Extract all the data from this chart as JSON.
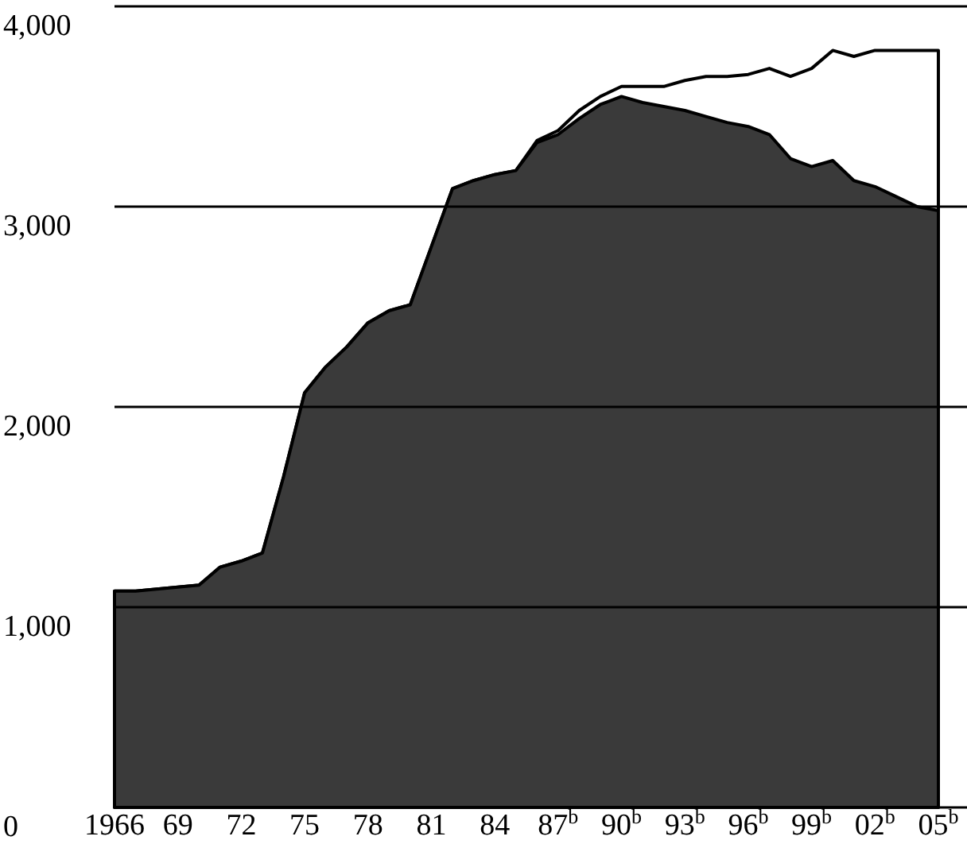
{
  "chart_data": {
    "type": "area",
    "categories": [
      "1966",
      null,
      null,
      "69",
      null,
      null,
      "72",
      null,
      null,
      "75",
      null,
      null,
      "78",
      null,
      null,
      "81",
      null,
      null,
      "84",
      null,
      null,
      "87$^{b}$",
      null,
      null,
      "90$^{b}$",
      null,
      null,
      "93$^{b}$",
      null,
      null,
      "96$^{b}$",
      null,
      null,
      "99$^{b}$",
      null,
      null,
      "02$^{b}$",
      null,
      null,
      "05$^{b}$"
    ],
    "series": [
      {
        "color": "#ffffff",
        "values": [
          1080,
          1080,
          1090,
          1100,
          1110,
          1200,
          1230,
          1270,
          1650,
          2070,
          2200,
          2300,
          2420,
          2480,
          2510,
          2800,
          3090,
          3130,
          3160,
          3180,
          3330,
          3380,
          3480,
          3550,
          3600,
          3600,
          3600,
          3630,
          3650,
          3650,
          3660,
          3690,
          3650,
          3690,
          3780,
          3750,
          3780,
          3780,
          3780,
          3780
        ]
      },
      {
        "color": "#3a3a3a",
        "values": [
          1080,
          1080,
          1090,
          1100,
          1110,
          1200,
          1230,
          1270,
          1650,
          2070,
          2200,
          2300,
          2420,
          2480,
          2510,
          2800,
          3090,
          3130,
          3160,
          3180,
          3320,
          3360,
          3440,
          3510,
          3550,
          3520,
          3500,
          3480,
          3450,
          3420,
          3400,
          3360,
          3240,
          3200,
          3230,
          3130,
          3100,
          3050,
          3000,
          2980
        ]
      }
    ],
    "ylim": [
      0,
      4000
    ],
    "yticks": [
      0,
      {
        "value": 1000,
        "label": "1,000"
      },
      {
        "value": 2000,
        "label": "2,000"
      },
      {
        "value": 3000,
        "label": "3,000"
      },
      {
        "value": 4000,
        "label": "4,000"
      }
    ],
    "grid": "y"
  }
}
